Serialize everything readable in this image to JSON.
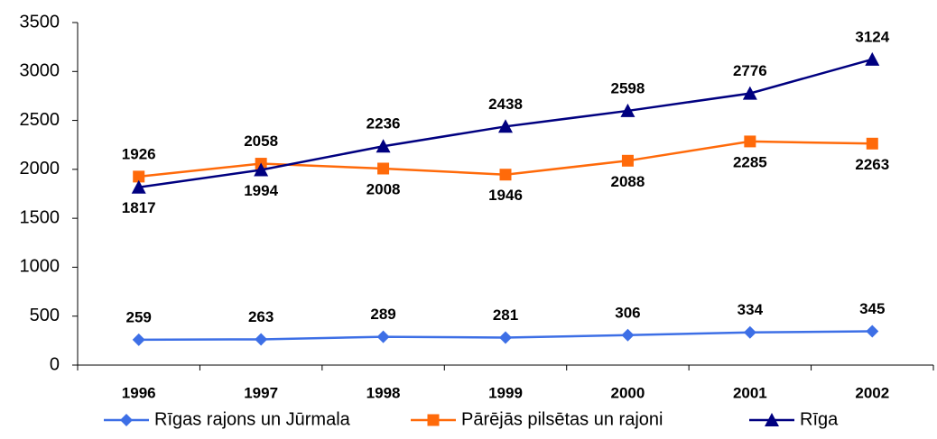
{
  "chart_data": {
    "type": "line",
    "categories": [
      "1996",
      "1997",
      "1998",
      "1999",
      "2000",
      "2001",
      "2002"
    ],
    "series": [
      {
        "name": "Rīgas rajons un Jūrmala",
        "color": "#3d6fe6",
        "marker": "diamond",
        "values": [
          259,
          263,
          289,
          281,
          306,
          334,
          345
        ]
      },
      {
        "name": "Pārējās pilsētas un rajoni",
        "color": "#ff6a0a",
        "marker": "square",
        "values": [
          1926,
          2058,
          2008,
          1946,
          2088,
          2285,
          2263
        ]
      },
      {
        "name": "Rīga",
        "color": "#000080",
        "marker": "triangle",
        "values": [
          1817,
          1994,
          2236,
          2438,
          2598,
          2776,
          3124
        ]
      }
    ],
    "ylim": [
      0,
      3500
    ],
    "yticks": [
      0,
      500,
      1000,
      1500,
      2000,
      2500,
      3000,
      3500
    ],
    "grid": false
  }
}
